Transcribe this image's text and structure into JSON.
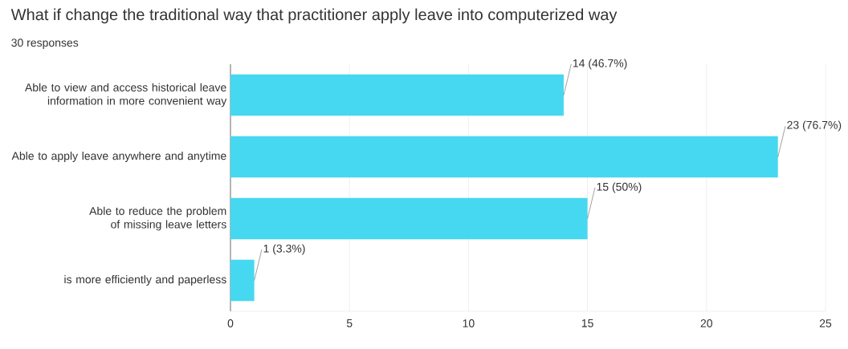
{
  "chart_data": {
    "type": "bar",
    "orientation": "horizontal",
    "title": "What if change the traditional way that practitioner apply leave into computerized way",
    "subtitle": "30 responses",
    "categories": [
      "Able to view and access historical leave information in more convenient way",
      "Able to apply leave anywhere and anytime",
      "Able to reduce the problem of missing leave letters",
      "is more efficiently and paperless"
    ],
    "values": [
      14,
      23,
      15,
      1
    ],
    "value_labels": [
      "14 (46.7%)",
      "23 (76.7%)",
      "15 (50%)",
      "1 (3.3%)"
    ],
    "color": "#46d8f0",
    "xlim": [
      0,
      25
    ],
    "xticks": [
      0,
      5,
      10,
      15,
      20,
      25
    ],
    "grid": "x"
  }
}
